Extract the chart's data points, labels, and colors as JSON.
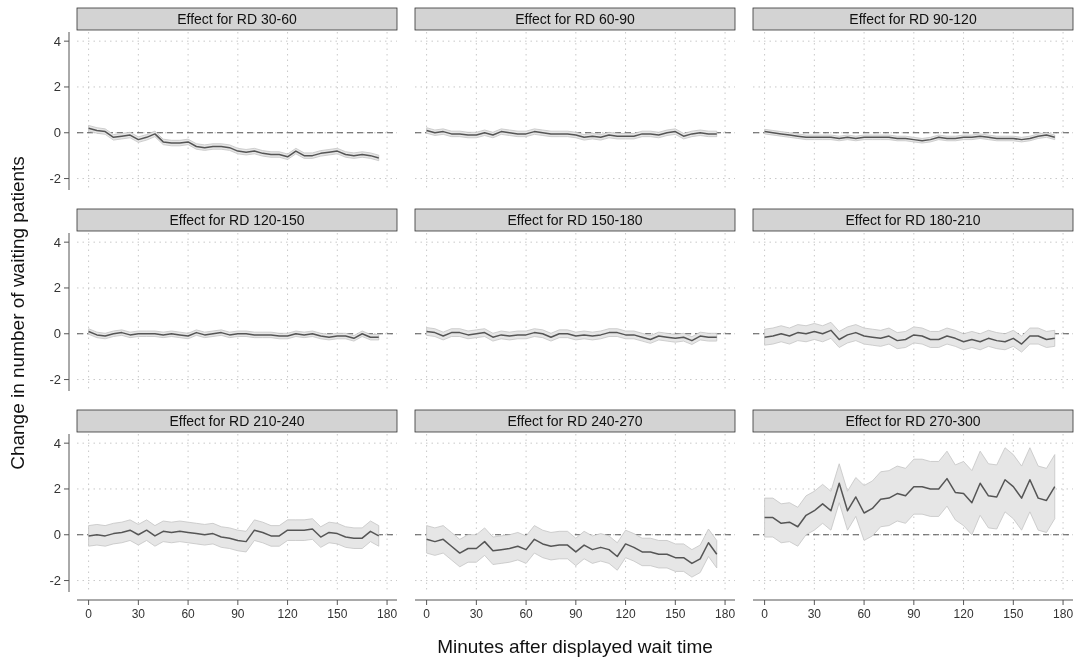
{
  "chart_data": [
    {
      "type": "line",
      "title": "Effect for RD 30-60",
      "tick_labels": "y",
      "grid": true,
      "xlim": [
        -7,
        186
      ],
      "ylim": [
        -2.5,
        4.4
      ],
      "xticks": [
        0,
        30,
        60,
        90,
        120,
        150,
        180
      ],
      "yticks": [
        -2,
        0,
        2,
        4
      ],
      "ref_lines": [
        {
          "axis": "y",
          "value": 0,
          "line_style": "dashed"
        }
      ],
      "x": [
        0,
        5,
        10,
        15,
        20,
        25,
        30,
        35,
        40,
        45,
        50,
        55,
        60,
        65,
        70,
        75,
        80,
        85,
        90,
        95,
        100,
        105,
        110,
        115,
        120,
        125,
        130,
        135,
        140,
        145,
        150,
        155,
        160,
        165,
        170,
        175
      ],
      "series": [
        {
          "color": "#555555",
          "values": [
            0.2,
            0.1,
            0.05,
            -0.2,
            -0.15,
            -0.1,
            -0.3,
            -0.2,
            -0.05,
            -0.4,
            -0.45,
            -0.45,
            -0.4,
            -0.6,
            -0.65,
            -0.6,
            -0.6,
            -0.65,
            -0.8,
            -0.85,
            -0.8,
            -0.9,
            -0.95,
            -0.95,
            -1.05,
            -0.8,
            -1.0,
            -1.0,
            -0.9,
            -0.85,
            -0.8,
            -0.95,
            -1.0,
            -0.95,
            -1.0,
            -1.1
          ],
          "lower": [
            0.08,
            -0.02,
            -0.07,
            -0.32,
            -0.27,
            -0.22,
            -0.42,
            -0.32,
            -0.17,
            -0.52,
            -0.57,
            -0.57,
            -0.52,
            -0.72,
            -0.77,
            -0.72,
            -0.72,
            -0.77,
            -0.92,
            -0.97,
            -0.92,
            -1.02,
            -1.07,
            -1.07,
            -1.17,
            -0.92,
            -1.12,
            -1.12,
            -1.02,
            -0.97,
            -0.92,
            -1.07,
            -1.12,
            -1.07,
            -1.12,
            -1.22
          ],
          "upper": [
            0.32,
            0.22,
            0.17,
            -0.08,
            -0.03,
            0.02,
            -0.18,
            -0.08,
            0.07,
            -0.28,
            -0.33,
            -0.33,
            -0.28,
            -0.48,
            -0.53,
            -0.48,
            -0.48,
            -0.53,
            -0.68,
            -0.73,
            -0.68,
            -0.78,
            -0.83,
            -0.83,
            -0.93,
            -0.68,
            -0.88,
            -0.88,
            -0.78,
            -0.73,
            -0.68,
            -0.83,
            -0.88,
            -0.83,
            -0.88,
            -0.98
          ]
        }
      ]
    },
    {
      "type": "line",
      "title": "Effect for RD 60-90",
      "tick_labels": false,
      "grid": true,
      "xlim": [
        -7,
        186
      ],
      "ylim": [
        -2.5,
        4.4
      ],
      "xticks": [
        0,
        30,
        60,
        90,
        120,
        150,
        180
      ],
      "yticks": [
        -2,
        0,
        2,
        4
      ],
      "ref_lines": [
        {
          "axis": "y",
          "value": 0,
          "line_style": "dashed"
        }
      ],
      "x": [
        0,
        5,
        10,
        15,
        20,
        25,
        30,
        35,
        40,
        45,
        50,
        55,
        60,
        65,
        70,
        75,
        80,
        85,
        90,
        95,
        100,
        105,
        110,
        115,
        120,
        125,
        130,
        135,
        140,
        145,
        150,
        155,
        160,
        165,
        170,
        175
      ],
      "series": [
        {
          "color": "#555555",
          "values": [
            0.1,
            0,
            0.05,
            -0.05,
            -0.05,
            -0.1,
            -0.1,
            0,
            -0.1,
            0.05,
            0,
            -0.05,
            -0.05,
            0.05,
            0,
            -0.05,
            -0.05,
            -0.05,
            -0.1,
            -0.2,
            -0.15,
            -0.2,
            -0.1,
            -0.15,
            -0.15,
            -0.15,
            -0.05,
            -0.05,
            -0.1,
            0,
            0.05,
            -0.15,
            -0.05,
            0,
            -0.05,
            -0.05
          ],
          "lower": [
            -0.02,
            -0.12,
            -0.07,
            -0.17,
            -0.17,
            -0.22,
            -0.22,
            -0.12,
            -0.22,
            -0.07,
            -0.12,
            -0.17,
            -0.17,
            -0.07,
            -0.12,
            -0.17,
            -0.17,
            -0.17,
            -0.22,
            -0.32,
            -0.27,
            -0.32,
            -0.22,
            -0.27,
            -0.27,
            -0.27,
            -0.17,
            -0.17,
            -0.22,
            -0.12,
            -0.07,
            -0.27,
            -0.17,
            -0.12,
            -0.17,
            -0.17
          ],
          "upper": [
            0.22,
            0.12,
            0.17,
            0.07,
            0.07,
            0.02,
            0.02,
            0.12,
            0.02,
            0.17,
            0.12,
            0.07,
            0.07,
            0.17,
            0.12,
            0.07,
            0.07,
            0.07,
            0.02,
            -0.08,
            -0.03,
            -0.08,
            0.02,
            -0.03,
            -0.03,
            -0.03,
            0.07,
            0.07,
            0.02,
            0.12,
            0.17,
            -0.03,
            0.07,
            0.12,
            0.07,
            0.07
          ]
        }
      ]
    },
    {
      "type": "line",
      "title": "Effect for RD 90-120",
      "tick_labels": false,
      "grid": true,
      "xlim": [
        -7,
        186
      ],
      "ylim": [
        -2.5,
        4.4
      ],
      "xticks": [
        0,
        30,
        60,
        90,
        120,
        150,
        180
      ],
      "yticks": [
        -2,
        0,
        2,
        4
      ],
      "ref_lines": [
        {
          "axis": "y",
          "value": 0,
          "line_style": "dashed"
        }
      ],
      "x": [
        0,
        5,
        10,
        15,
        20,
        25,
        30,
        35,
        40,
        45,
        50,
        55,
        60,
        65,
        70,
        75,
        80,
        85,
        90,
        95,
        100,
        105,
        110,
        115,
        120,
        125,
        130,
        135,
        140,
        145,
        150,
        155,
        160,
        165,
        170,
        175
      ],
      "series": [
        {
          "color": "#555555",
          "values": [
            0.05,
            0,
            -0.05,
            -0.1,
            -0.15,
            -0.2,
            -0.2,
            -0.2,
            -0.2,
            -0.25,
            -0.2,
            -0.25,
            -0.2,
            -0.2,
            -0.2,
            -0.2,
            -0.25,
            -0.25,
            -0.3,
            -0.35,
            -0.3,
            -0.2,
            -0.25,
            -0.25,
            -0.2,
            -0.2,
            -0.15,
            -0.2,
            -0.25,
            -0.25,
            -0.25,
            -0.3,
            -0.25,
            -0.15,
            -0.1,
            -0.2
          ],
          "lower": [
            -0.05,
            -0.1,
            -0.15,
            -0.2,
            -0.25,
            -0.3,
            -0.3,
            -0.3,
            -0.3,
            -0.35,
            -0.3,
            -0.35,
            -0.3,
            -0.3,
            -0.3,
            -0.3,
            -0.35,
            -0.35,
            -0.4,
            -0.45,
            -0.4,
            -0.3,
            -0.35,
            -0.35,
            -0.3,
            -0.3,
            -0.25,
            -0.3,
            -0.35,
            -0.35,
            -0.35,
            -0.4,
            -0.35,
            -0.25,
            -0.2,
            -0.3
          ],
          "upper": [
            0.15,
            0.1,
            0.05,
            0,
            -0.05,
            -0.1,
            -0.1,
            -0.1,
            -0.1,
            -0.15,
            -0.1,
            -0.15,
            -0.1,
            -0.1,
            -0.1,
            -0.1,
            -0.15,
            -0.15,
            -0.2,
            -0.25,
            -0.2,
            -0.1,
            -0.15,
            -0.15,
            -0.1,
            -0.1,
            -0.05,
            -0.1,
            -0.15,
            -0.15,
            -0.15,
            -0.2,
            -0.15,
            -0.05,
            0,
            -0.1
          ]
        }
      ]
    },
    {
      "type": "line",
      "title": "Effect for RD 120-150",
      "ylabel": "Change in number of waiting patients",
      "tick_labels": "y",
      "grid": true,
      "xlim": [
        -7,
        186
      ],
      "ylim": [
        -2.5,
        4.4
      ],
      "xticks": [
        0,
        30,
        60,
        90,
        120,
        150,
        180
      ],
      "yticks": [
        -2,
        0,
        2,
        4
      ],
      "ref_lines": [
        {
          "axis": "y",
          "value": 0,
          "line_style": "dashed"
        }
      ],
      "x": [
        0,
        5,
        10,
        15,
        20,
        25,
        30,
        35,
        40,
        45,
        50,
        55,
        60,
        65,
        70,
        75,
        80,
        85,
        90,
        95,
        100,
        105,
        110,
        115,
        120,
        125,
        130,
        135,
        140,
        145,
        150,
        155,
        160,
        165,
        170,
        175
      ],
      "series": [
        {
          "color": "#555555",
          "values": [
            0.1,
            -0.05,
            -0.1,
            0,
            0.05,
            -0.05,
            0,
            0,
            0,
            -0.05,
            0,
            -0.05,
            -0.1,
            0.05,
            -0.05,
            0,
            0.05,
            -0.05,
            0,
            0,
            -0.05,
            -0.05,
            -0.05,
            -0.1,
            -0.1,
            0,
            -0.05,
            0,
            -0.1,
            -0.15,
            -0.1,
            -0.1,
            -0.2,
            0,
            -0.15,
            -0.15
          ],
          "lower": [
            -0.02,
            -0.17,
            -0.22,
            -0.12,
            -0.07,
            -0.17,
            -0.12,
            -0.12,
            -0.12,
            -0.17,
            -0.12,
            -0.17,
            -0.22,
            -0.07,
            -0.17,
            -0.12,
            -0.07,
            -0.17,
            -0.12,
            -0.12,
            -0.17,
            -0.17,
            -0.17,
            -0.22,
            -0.22,
            -0.12,
            -0.17,
            -0.12,
            -0.22,
            -0.27,
            -0.22,
            -0.22,
            -0.32,
            -0.12,
            -0.27,
            -0.27
          ],
          "upper": [
            0.22,
            0.07,
            0.02,
            0.12,
            0.17,
            0.07,
            0.12,
            0.12,
            0.12,
            0.07,
            0.12,
            0.07,
            0.02,
            0.17,
            0.07,
            0.12,
            0.17,
            0.07,
            0.12,
            0.12,
            0.07,
            0.07,
            0.07,
            0.02,
            0.02,
            0.12,
            0.07,
            0.12,
            0.02,
            -0.03,
            0.02,
            0.02,
            -0.08,
            0.12,
            -0.03,
            -0.03
          ]
        }
      ]
    },
    {
      "type": "line",
      "title": "Effect for RD 150-180",
      "tick_labels": false,
      "grid": true,
      "xlim": [
        -7,
        186
      ],
      "ylim": [
        -2.5,
        4.4
      ],
      "xticks": [
        0,
        30,
        60,
        90,
        120,
        150,
        180
      ],
      "yticks": [
        -2,
        0,
        2,
        4
      ],
      "ref_lines": [
        {
          "axis": "y",
          "value": 0,
          "line_style": "dashed"
        }
      ],
      "x": [
        0,
        5,
        10,
        15,
        20,
        25,
        30,
        35,
        40,
        45,
        50,
        55,
        60,
        65,
        70,
        75,
        80,
        85,
        90,
        95,
        100,
        105,
        110,
        115,
        120,
        125,
        130,
        135,
        140,
        145,
        150,
        155,
        160,
        165,
        170,
        175
      ],
      "series": [
        {
          "color": "#555555",
          "values": [
            0.1,
            0.05,
            -0.1,
            0.05,
            0.05,
            -0.05,
            0,
            0.05,
            -0.15,
            -0.05,
            -0.1,
            -0.05,
            -0.05,
            0.05,
            0,
            -0.15,
            0,
            0,
            -0.1,
            -0.05,
            -0.1,
            -0.05,
            0.05,
            0.05,
            -0.05,
            -0.05,
            -0.15,
            -0.25,
            -0.1,
            -0.15,
            -0.2,
            -0.15,
            -0.3,
            -0.1,
            -0.15,
            -0.15
          ],
          "lower": [
            -0.07,
            -0.12,
            -0.27,
            -0.12,
            -0.12,
            -0.22,
            -0.17,
            -0.12,
            -0.32,
            -0.22,
            -0.27,
            -0.22,
            -0.22,
            -0.12,
            -0.17,
            -0.32,
            -0.17,
            -0.17,
            -0.27,
            -0.22,
            -0.27,
            -0.22,
            -0.12,
            -0.12,
            -0.22,
            -0.22,
            -0.32,
            -0.42,
            -0.27,
            -0.32,
            -0.37,
            -0.32,
            -0.47,
            -0.27,
            -0.32,
            -0.32
          ],
          "upper": [
            0.27,
            0.22,
            0.07,
            0.22,
            0.22,
            0.12,
            0.17,
            0.22,
            0.02,
            0.12,
            0.07,
            0.12,
            0.12,
            0.22,
            0.17,
            0.02,
            0.17,
            0.17,
            0.07,
            0.12,
            0.07,
            0.12,
            0.22,
            0.22,
            0.12,
            0.12,
            0.02,
            -0.08,
            0.07,
            0.02,
            -0.03,
            0.02,
            -0.13,
            0.07,
            0.02,
            0.02
          ]
        }
      ]
    },
    {
      "type": "line",
      "title": "Effect for RD 180-210",
      "tick_labels": false,
      "grid": true,
      "xlim": [
        -7,
        186
      ],
      "ylim": [
        -2.5,
        4.4
      ],
      "xticks": [
        0,
        30,
        60,
        90,
        120,
        150,
        180
      ],
      "yticks": [
        -2,
        0,
        2,
        4
      ],
      "ref_lines": [
        {
          "axis": "y",
          "value": 0,
          "line_style": "dashed"
        }
      ],
      "x": [
        0,
        5,
        10,
        15,
        20,
        25,
        30,
        35,
        40,
        45,
        50,
        55,
        60,
        65,
        70,
        75,
        80,
        85,
        90,
        95,
        100,
        105,
        110,
        115,
        120,
        125,
        130,
        135,
        140,
        145,
        150,
        155,
        160,
        165,
        170,
        175
      ],
      "series": [
        {
          "color": "#555555",
          "values": [
            -0.15,
            -0.1,
            0,
            -0.1,
            0.05,
            0,
            0.1,
            0,
            0.15,
            -0.25,
            -0.05,
            0.05,
            -0.1,
            -0.15,
            -0.2,
            -0.1,
            -0.3,
            -0.25,
            -0.05,
            -0.1,
            -0.25,
            -0.25,
            -0.1,
            -0.2,
            -0.35,
            -0.25,
            -0.35,
            -0.2,
            -0.3,
            -0.35,
            -0.2,
            -0.45,
            -0.1,
            -0.1,
            -0.25,
            -0.2
          ],
          "lower": [
            -0.5,
            -0.45,
            -0.35,
            -0.45,
            -0.3,
            -0.35,
            -0.25,
            -0.35,
            -0.2,
            -0.6,
            -0.4,
            -0.3,
            -0.45,
            -0.5,
            -0.55,
            -0.45,
            -0.65,
            -0.6,
            -0.4,
            -0.45,
            -0.6,
            -0.6,
            -0.45,
            -0.55,
            -0.7,
            -0.6,
            -0.7,
            -0.55,
            -0.65,
            -0.7,
            -0.55,
            -0.8,
            -0.45,
            -0.45,
            -0.6,
            -0.55
          ],
          "upper": [
            0.2,
            0.25,
            0.35,
            0.25,
            0.4,
            0.35,
            0.45,
            0.35,
            0.5,
            0.1,
            0.3,
            0.4,
            0.25,
            0.2,
            0.15,
            0.25,
            0.05,
            0.1,
            0.3,
            0.25,
            0.1,
            0.1,
            0.25,
            0.15,
            0,
            0.1,
            0,
            0.15,
            0.05,
            0,
            0.15,
            -0.1,
            0.25,
            0.25,
            0.1,
            0.15
          ]
        }
      ]
    },
    {
      "type": "line",
      "title": "Effect for RD 210-240",
      "grid": true,
      "xlim": [
        -7,
        186
      ],
      "ylim": [
        -2.5,
        4.4
      ],
      "xticks": [
        0,
        30,
        60,
        90,
        120,
        150,
        180
      ],
      "yticks": [
        -2,
        0,
        2,
        4
      ],
      "ref_lines": [
        {
          "axis": "y",
          "value": 0,
          "line_style": "dashed"
        }
      ],
      "x": [
        0,
        5,
        10,
        15,
        20,
        25,
        30,
        35,
        40,
        45,
        50,
        55,
        60,
        65,
        70,
        75,
        80,
        85,
        90,
        95,
        100,
        105,
        110,
        115,
        120,
        125,
        130,
        135,
        140,
        145,
        150,
        155,
        160,
        165,
        170,
        175
      ],
      "series": [
        {
          "color": "#555555",
          "values": [
            -0.05,
            0,
            -0.05,
            0.05,
            0.1,
            0.2,
            0,
            0.2,
            -0.05,
            0.15,
            0.1,
            0.15,
            0.1,
            0.05,
            0,
            0.05,
            -0.1,
            -0.15,
            -0.25,
            -0.3,
            0.2,
            0.1,
            -0.05,
            -0.05,
            0.2,
            0.2,
            0.2,
            0.25,
            -0.1,
            0.1,
            0.05,
            -0.1,
            -0.15,
            -0.15,
            0.15,
            -0.05
          ],
          "lower": [
            -0.5,
            -0.45,
            -0.5,
            -0.4,
            -0.35,
            -0.25,
            -0.45,
            -0.25,
            -0.5,
            -0.3,
            -0.35,
            -0.3,
            -0.35,
            -0.4,
            -0.45,
            -0.4,
            -0.55,
            -0.6,
            -0.7,
            -0.75,
            -0.25,
            -0.35,
            -0.5,
            -0.5,
            -0.25,
            -0.25,
            -0.25,
            -0.2,
            -0.55,
            -0.35,
            -0.4,
            -0.55,
            -0.6,
            -0.6,
            -0.3,
            -0.5
          ],
          "upper": [
            0.4,
            0.45,
            0.4,
            0.5,
            0.55,
            0.65,
            0.45,
            0.65,
            0.4,
            0.6,
            0.55,
            0.6,
            0.55,
            0.5,
            0.45,
            0.5,
            0.35,
            0.3,
            0.2,
            0.15,
            0.65,
            0.55,
            0.4,
            0.4,
            0.65,
            0.65,
            0.65,
            0.7,
            0.35,
            0.55,
            0.5,
            0.35,
            0.3,
            0.3,
            0.6,
            0.4
          ]
        }
      ]
    },
    {
      "type": "line",
      "title": "Effect for RD 240-270",
      "xlabel": "Minutes after displayed wait time",
      "tick_labels": "x",
      "grid": true,
      "xlim": [
        -7,
        186
      ],
      "ylim": [
        -2.5,
        4.4
      ],
      "xticks": [
        0,
        30,
        60,
        90,
        120,
        150,
        180
      ],
      "yticks": [
        -2,
        0,
        2,
        4
      ],
      "ref_lines": [
        {
          "axis": "y",
          "value": 0,
          "line_style": "dashed"
        }
      ],
      "x": [
        0,
        5,
        10,
        15,
        20,
        25,
        30,
        35,
        40,
        45,
        50,
        55,
        60,
        65,
        70,
        75,
        80,
        85,
        90,
        95,
        100,
        105,
        110,
        115,
        120,
        125,
        130,
        135,
        140,
        145,
        150,
        155,
        160,
        165,
        170,
        175
      ],
      "series": [
        {
          "color": "#555555",
          "values": [
            -0.2,
            -0.3,
            -0.2,
            -0.5,
            -0.8,
            -0.6,
            -0.6,
            -0.3,
            -0.7,
            -0.65,
            -0.6,
            -0.5,
            -0.65,
            -0.2,
            -0.4,
            -0.5,
            -0.45,
            -0.45,
            -0.75,
            -0.45,
            -0.65,
            -0.55,
            -0.65,
            -0.95,
            -0.4,
            -0.55,
            -0.75,
            -0.75,
            -0.85,
            -0.85,
            -1.0,
            -1.0,
            -1.25,
            -1.05,
            -0.35,
            -0.85
          ],
          "lower": [
            -0.8,
            -0.9,
            -0.8,
            -1.1,
            -1.4,
            -1.2,
            -1.2,
            -0.9,
            -1.3,
            -1.25,
            -1.2,
            -1.1,
            -1.25,
            -0.8,
            -1.0,
            -1.1,
            -1.05,
            -1.05,
            -1.35,
            -1.05,
            -1.25,
            -1.15,
            -1.25,
            -1.55,
            -1.0,
            -1.15,
            -1.35,
            -1.35,
            -1.45,
            -1.45,
            -1.6,
            -1.6,
            -1.85,
            -1.65,
            -0.95,
            -1.45
          ],
          "upper": [
            0.4,
            0.3,
            0.4,
            0.1,
            -0.2,
            0,
            0,
            0.3,
            -0.1,
            -0.05,
            0,
            0.1,
            -0.05,
            0.4,
            0.2,
            0.1,
            0.15,
            0.15,
            -0.15,
            0.15,
            -0.05,
            0.05,
            -0.05,
            -0.35,
            0.2,
            0.05,
            -0.15,
            -0.15,
            -0.25,
            -0.25,
            -0.4,
            -0.4,
            -0.65,
            -0.45,
            0.25,
            -0.25
          ]
        }
      ]
    },
    {
      "type": "line",
      "title": "Effect for RD 270-300",
      "tick_labels": "x",
      "grid": true,
      "xlim": [
        -7,
        186
      ],
      "ylim": [
        -2.5,
        4.4
      ],
      "xticks": [
        0,
        30,
        60,
        90,
        120,
        150,
        180
      ],
      "yticks": [
        -2,
        0,
        2,
        4
      ],
      "ref_lines": [
        {
          "axis": "y",
          "value": 0,
          "line_style": "dashed"
        }
      ],
      "x": [
        0,
        5,
        10,
        15,
        20,
        25,
        30,
        35,
        40,
        45,
        50,
        55,
        60,
        65,
        70,
        75,
        80,
        85,
        90,
        95,
        100,
        105,
        110,
        115,
        120,
        125,
        130,
        135,
        140,
        145,
        150,
        155,
        160,
        165,
        170,
        175
      ],
      "series": [
        {
          "color": "#555555",
          "values": [
            0.75,
            0.75,
            0.5,
            0.55,
            0.35,
            0.85,
            1.05,
            1.35,
            1.05,
            2.25,
            1.05,
            1.65,
            0.95,
            1.15,
            1.55,
            1.6,
            1.8,
            1.7,
            2.1,
            2.1,
            2.0,
            2.0,
            2.45,
            1.85,
            1.8,
            1.4,
            2.25,
            1.7,
            1.65,
            2.4,
            2.1,
            1.6,
            2.4,
            1.6,
            1.5,
            2.1
          ],
          "lower": [
            -0.1,
            -0.1,
            -0.35,
            -0.3,
            -0.5,
            0,
            0.2,
            0.5,
            0.2,
            1.4,
            0.2,
            0.8,
            -0.25,
            -0.05,
            0.35,
            0.4,
            0.6,
            0.5,
            0.9,
            0.9,
            0.8,
            0.8,
            1.25,
            0.65,
            0.4,
            0,
            0.85,
            0.3,
            0.25,
            1.0,
            0.7,
            0.2,
            1.0,
            0.2,
            0.1,
            0.7
          ],
          "upper": [
            1.6,
            1.6,
            1.35,
            1.4,
            1.2,
            1.7,
            1.9,
            2.2,
            1.9,
            3.1,
            1.9,
            2.5,
            2.15,
            2.35,
            2.75,
            2.8,
            3.0,
            2.9,
            3.3,
            3.3,
            3.2,
            3.2,
            3.65,
            3.05,
            3.2,
            2.8,
            3.65,
            3.1,
            3.05,
            3.8,
            3.5,
            3.0,
            3.8,
            3.0,
            2.9,
            3.5
          ]
        }
      ]
    }
  ]
}
